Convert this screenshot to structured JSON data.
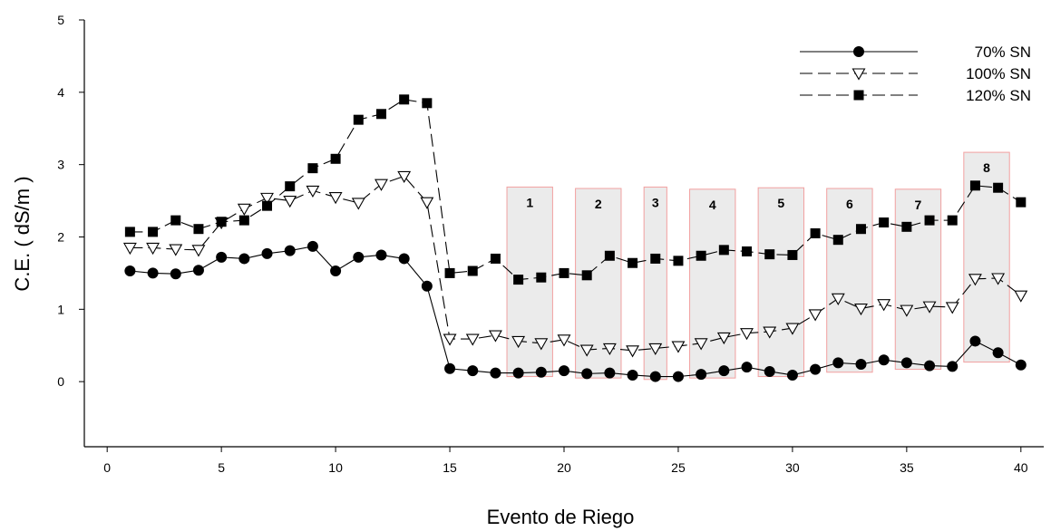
{
  "chart_data": {
    "type": "line",
    "title": "",
    "xlabel": "Evento de Riego",
    "ylabel": "C.E.    ( dS/m )",
    "xlim": [
      -1,
      41
    ],
    "ylim": [
      -0.9,
      5
    ],
    "xticks": [
      0,
      5,
      10,
      15,
      20,
      25,
      30,
      35,
      40
    ],
    "yticks": [
      0,
      1,
      2,
      3,
      4,
      5
    ],
    "grid": false,
    "legend_position": "top-right",
    "x": [
      1,
      2,
      3,
      4,
      5,
      6,
      7,
      8,
      9,
      10,
      11,
      12,
      13,
      14,
      15,
      16,
      17,
      18,
      19,
      20,
      21,
      22,
      23,
      24,
      25,
      26,
      27,
      28,
      29,
      30,
      31,
      32,
      33,
      34,
      35,
      36,
      37,
      38,
      39,
      40
    ],
    "series": [
      {
        "name": "70% SN",
        "marker": "circle-filled",
        "line": "solid",
        "values": [
          1.53,
          1.5,
          1.49,
          1.54,
          1.72,
          1.7,
          1.77,
          1.81,
          1.87,
          1.53,
          1.72,
          1.75,
          1.7,
          1.32,
          0.18,
          0.15,
          0.12,
          0.12,
          0.13,
          0.15,
          0.11,
          0.12,
          0.09,
          0.07,
          0.07,
          0.1,
          0.15,
          0.2,
          0.14,
          0.09,
          0.17,
          0.26,
          0.24,
          0.3,
          0.26,
          0.22,
          0.21,
          0.56,
          0.4,
          0.23
        ]
      },
      {
        "name": "100% SN",
        "marker": "triangle-down-open",
        "line": "long-dash",
        "values": [
          1.85,
          1.85,
          1.83,
          1.82,
          2.2,
          2.39,
          2.54,
          2.5,
          2.64,
          2.55,
          2.47,
          2.73,
          2.84,
          2.48,
          0.59,
          0.59,
          0.64,
          0.56,
          0.53,
          0.58,
          0.44,
          0.46,
          0.43,
          0.46,
          0.49,
          0.53,
          0.61,
          0.67,
          0.69,
          0.74,
          0.93,
          1.15,
          1.01,
          1.07,
          0.99,
          1.04,
          1.03,
          1.42,
          1.43,
          1.19
        ]
      },
      {
        "name": "120% SN",
        "marker": "square-filled",
        "line": "long-dash",
        "values": [
          2.07,
          2.07,
          2.23,
          2.11,
          2.21,
          2.23,
          2.43,
          2.7,
          2.95,
          3.08,
          3.62,
          3.7,
          3.9,
          3.85,
          1.5,
          1.53,
          1.7,
          1.41,
          1.44,
          1.5,
          1.47,
          1.74,
          1.64,
          1.7,
          1.67,
          1.74,
          1.82,
          1.8,
          1.76,
          1.75,
          2.05,
          1.96,
          2.11,
          2.2,
          2.14,
          2.23,
          2.23,
          2.71,
          2.68,
          2.48
        ]
      }
    ],
    "regions": [
      {
        "label": "1",
        "x0": 18,
        "x1": 20,
        "y0": 0.07,
        "y1": 2.69
      },
      {
        "label": "2",
        "x0": 21,
        "x1": 23,
        "y0": 0.05,
        "y1": 2.67
      },
      {
        "label": "3",
        "x0": 24,
        "x1": 25,
        "y0": 0.03,
        "y1": 2.69
      },
      {
        "label": "4",
        "x0": 26,
        "x1": 28,
        "y0": 0.05,
        "y1": 2.66
      },
      {
        "label": "5",
        "x0": 29,
        "x1": 31,
        "y0": 0.07,
        "y1": 2.68
      },
      {
        "label": "6",
        "x0": 32,
        "x1": 34,
        "y0": 0.13,
        "y1": 2.67
      },
      {
        "label": "7",
        "x0": 35,
        "x1": 37,
        "y0": 0.17,
        "y1": 2.66
      },
      {
        "label": "8",
        "x0": 38,
        "x1": 40,
        "y0": 0.27,
        "y1": 3.17
      }
    ],
    "colors": {
      "line": "#000000",
      "region_fill": "#ebebeb",
      "region_border": "#f2a0a0"
    }
  }
}
